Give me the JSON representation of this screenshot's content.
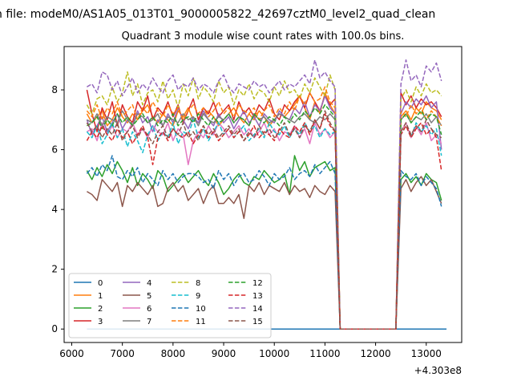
{
  "figure": {
    "suptitle": "n file: modeM0/AS1A05_013T01_9000005822_42697cztM0_level2_quad_clean",
    "title": "Quadrant 3 module wise count rates with 100.0s bins.",
    "x_offset_label": "+4.303e8"
  },
  "chart_data": {
    "type": "line",
    "title": "Quadrant 3 module wise count rates with 100.0s bins.",
    "xlabel": "",
    "ylabel": "",
    "x_offset": 430300000,
    "xlim": [
      5850,
      13700
    ],
    "ylim": [
      -0.45,
      9.45
    ],
    "xticks": [
      6000,
      7000,
      8000,
      9000,
      10000,
      11000,
      12000,
      13000
    ],
    "xtick_labels": [
      "6000",
      "7000",
      "8000",
      "9000",
      "10000",
      "11000",
      "12000",
      "13000"
    ],
    "yticks": [
      0,
      2,
      4,
      6,
      8
    ],
    "ytick_labels": [
      "0",
      "2",
      "4",
      "6",
      "8"
    ],
    "grid": false,
    "legend_position": "lower-left",
    "legend_columns": 4,
    "bins": {
      "x_start": 6300,
      "x_step": 100,
      "drop_x": [
        11300,
        12400
      ],
      "end_x": 13400
    },
    "series": [
      {
        "name": "0",
        "color": "#1f77b4",
        "dash": "solid",
        "values": [
          0,
          0
        ]
      },
      {
        "name": "1",
        "color": "#ff7f0e",
        "dash": "solid",
        "values": [
          7.2,
          6.9,
          7.1,
          7.3,
          6.8,
          7.0,
          7.4,
          7.1,
          6.9,
          7.2,
          7.0,
          7.3,
          7.5,
          7.1,
          6.9,
          7.2,
          7.0,
          6.8,
          7.3,
          7.1,
          7.4,
          7.0,
          6.9,
          7.2,
          7.3,
          7.1,
          6.8,
          7.0,
          7.2,
          7.4,
          7.1,
          6.9,
          7.2,
          7.0,
          7.3,
          7.1,
          6.8,
          7.0,
          7.2,
          7.1,
          7.3,
          7.5,
          7.8,
          7.4,
          7.0,
          7.6,
          7.2,
          7.9,
          7.5,
          7.2
        ]
      },
      {
        "name": "2",
        "color": "#2ca02c",
        "dash": "solid",
        "values": [
          5.3,
          5.0,
          5.4,
          5.1,
          5.5,
          5.2,
          5.6,
          5.3,
          4.9,
          5.4,
          4.8,
          5.2,
          5.0,
          4.7,
          5.3,
          5.1,
          4.6,
          4.8,
          5.0,
          5.2,
          4.9,
          5.1,
          5.3,
          5.0,
          4.8,
          5.2,
          4.9,
          4.5,
          4.7,
          5.0,
          5.2,
          4.9,
          4.8,
          5.1,
          5.0,
          5.3,
          5.1,
          4.9,
          5.0,
          5.2,
          4.5,
          5.8,
          5.3,
          5.6,
          5.1,
          5.4,
          5.5,
          5.6,
          5.3,
          5.4
        ]
      },
      {
        "name": "3",
        "color": "#d62728",
        "dash": "solid",
        "values": [
          8.0,
          7.2,
          6.6,
          7.4,
          7.0,
          7.6,
          6.8,
          7.5,
          7.1,
          6.9,
          7.6,
          7.3,
          7.8,
          7.0,
          7.4,
          7.2,
          7.6,
          7.1,
          7.5,
          6.9,
          7.3,
          7.7,
          7.0,
          7.4,
          7.2,
          7.6,
          7.1,
          7.3,
          7.5,
          7.0,
          7.6,
          7.2,
          7.4,
          7.1,
          7.5,
          7.3,
          7.7,
          7.2,
          7.0,
          7.5,
          7.3,
          7.6,
          7.8,
          7.4,
          7.9,
          7.6,
          7.3,
          7.8,
          7.5,
          7.7
        ]
      },
      {
        "name": "4",
        "color": "#9467bd",
        "dash": "solid",
        "values": [
          7.0,
          6.5,
          6.8,
          7.1,
          6.6,
          6.9,
          7.2,
          6.7,
          7.0,
          6.8,
          7.3,
          6.9,
          7.1,
          6.6,
          7.0,
          6.8,
          7.2,
          6.9,
          7.4,
          7.0,
          6.7,
          7.1,
          6.9,
          7.3,
          7.0,
          6.8,
          7.2,
          6.9,
          7.1,
          6.7,
          7.0,
          7.3,
          6.9,
          7.1,
          6.8,
          7.2,
          7.0,
          6.9,
          7.3,
          7.1,
          7.0,
          7.4,
          7.2,
          7.6,
          7.1,
          7.5,
          7.3,
          7.8,
          7.4,
          7.2
        ]
      },
      {
        "name": "5",
        "color": "#8c564b",
        "dash": "solid",
        "values": [
          4.6,
          4.5,
          4.3,
          5.0,
          4.8,
          4.6,
          4.9,
          4.1,
          4.8,
          4.6,
          4.9,
          4.7,
          4.5,
          4.8,
          4.1,
          4.2,
          4.7,
          4.9,
          4.6,
          4.8,
          4.3,
          4.5,
          4.7,
          4.2,
          4.6,
          4.8,
          4.2,
          4.2,
          4.4,
          4.2,
          4.5,
          3.7,
          4.8,
          4.6,
          4.9,
          4.5,
          4.8,
          4.7,
          4.6,
          4.9,
          4.5,
          4.8,
          4.6,
          4.7,
          4.4,
          4.8,
          4.6,
          4.5,
          4.8,
          4.6
        ]
      },
      {
        "name": "6",
        "color": "#e377c2",
        "dash": "solid",
        "values": [
          6.6,
          6.7,
          6.3,
          6.9,
          6.5,
          6.8,
          6.4,
          6.7,
          6.6,
          6.9,
          6.5,
          6.7,
          6.4,
          6.8,
          6.6,
          6.5,
          6.9,
          6.3,
          6.7,
          6.5,
          5.5,
          6.3,
          6.6,
          6.4,
          6.8,
          6.5,
          6.9,
          6.7,
          6.4,
          6.6,
          6.8,
          6.5,
          6.7,
          6.4,
          6.6,
          6.9,
          6.5,
          6.7,
          6.3,
          6.6,
          6.5,
          6.8,
          6.4,
          6.7,
          6.2,
          6.9,
          6.5,
          6.7,
          6.4,
          6.6
        ]
      },
      {
        "name": "7",
        "color": "#7f7f7f",
        "dash": "solid",
        "values": [
          7.0,
          6.9,
          7.2,
          6.8,
          7.1,
          7.0,
          6.9,
          7.3,
          7.0,
          6.8,
          7.2,
          7.1,
          6.9,
          7.0,
          7.2,
          6.8,
          7.1,
          7.0,
          6.9,
          7.2,
          7.0,
          7.1,
          6.8,
          7.2,
          7.0,
          6.9,
          7.1,
          7.0,
          7.2,
          6.9,
          7.1,
          7.0,
          6.8,
          7.2,
          7.0,
          7.1,
          6.9,
          7.0,
          7.2,
          7.1,
          7.0,
          6.9,
          7.1,
          7.2,
          7.0,
          6.9,
          7.1,
          7.0,
          7.2,
          7.0
        ]
      },
      {
        "name": "8",
        "color": "#bcbd22",
        "dash": "dashed",
        "values": [
          7.5,
          7.2,
          7.7,
          7.8,
          7.5,
          8.1,
          7.6,
          7.9,
          8.6,
          7.8,
          8.2,
          7.5,
          7.9,
          8.0,
          7.6,
          8.3,
          7.7,
          8.0,
          7.4,
          8.2,
          7.8,
          8.4,
          7.7,
          8.1,
          7.9,
          7.6,
          8.3,
          7.9,
          8.1,
          7.5,
          8.0,
          7.8,
          8.2,
          7.7,
          8.0,
          7.9,
          7.6,
          8.1,
          7.8,
          8.3,
          7.9,
          8.0,
          7.7,
          8.2,
          7.9,
          8.4,
          8.1,
          7.8,
          8.5,
          8.0
        ]
      },
      {
        "name": "9",
        "color": "#17becf",
        "dash": "dashed",
        "values": [
          6.6,
          6.4,
          6.8,
          6.2,
          6.5,
          6.9,
          6.4,
          6.7,
          6.1,
          6.6,
          6.3,
          5.9,
          6.5,
          6.8,
          6.3,
          6.6,
          6.4,
          6.9,
          6.2,
          6.6,
          6.5,
          7.0,
          6.4,
          6.7,
          6.3,
          6.6,
          6.9,
          6.5,
          6.7,
          6.4,
          6.6,
          6.8,
          6.3,
          6.5,
          6.7,
          6.4,
          6.9,
          6.6,
          6.5,
          6.8,
          6.4,
          6.7,
          6.5,
          6.9,
          6.6,
          6.8,
          6.4,
          6.7,
          6.5,
          6.6
        ]
      },
      {
        "name": "10",
        "color": "#1f77b4",
        "dash": "dashed",
        "values": [
          5.2,
          5.4,
          5.1,
          5.5,
          5.3,
          5.8,
          5.1,
          5.0,
          5.3,
          5.1,
          5.4,
          4.9,
          5.2,
          5.0,
          4.8,
          5.3,
          5.0,
          5.2,
          4.9,
          5.1,
          5.2,
          5.2,
          5.1,
          4.9,
          5.0,
          4.7,
          5.3,
          5.0,
          5.2,
          4.8,
          5.1,
          5.2,
          4.9,
          5.0,
          5.3,
          5.1,
          4.8,
          5.2,
          5.0,
          5.1,
          5.4,
          5.0,
          5.2,
          5.3,
          5.1,
          5.5,
          5.2,
          5.4,
          5.6,
          5.2
        ]
      },
      {
        "name": "11",
        "color": "#ff7f0e",
        "dash": "dashed",
        "values": [
          7.3,
          7.1,
          7.5,
          7.0,
          7.4,
          7.2,
          7.6,
          7.1,
          7.3,
          7.5,
          7.0,
          7.4,
          7.2,
          7.6,
          7.3,
          7.1,
          7.5,
          7.2,
          7.4,
          7.0,
          7.3,
          7.5,
          7.2,
          7.4,
          7.1,
          7.3,
          7.6,
          7.2,
          7.4,
          7.1,
          7.5,
          7.3,
          7.2,
          7.4,
          7.0,
          7.3,
          7.5,
          7.1,
          7.4,
          7.2,
          7.6,
          7.3,
          7.8,
          7.5,
          7.9,
          7.6,
          7.7,
          8.1,
          7.6,
          7.4
        ]
      },
      {
        "name": "12",
        "color": "#2ca02c",
        "dash": "dashed",
        "values": [
          6.8,
          6.9,
          7.1,
          6.7,
          7.0,
          6.8,
          7.2,
          6.9,
          7.1,
          6.8,
          7.0,
          7.2,
          6.9,
          7.1,
          6.8,
          7.0,
          6.9,
          7.2,
          6.8,
          7.0,
          7.1,
          6.9,
          7.2,
          7.0,
          6.8,
          7.1,
          6.9,
          7.0,
          7.2,
          6.9,
          7.1,
          7.0,
          6.8,
          7.2,
          7.0,
          6.9,
          7.1,
          7.0,
          6.8,
          7.1,
          6.9,
          7.2,
          7.0,
          7.3,
          7.1,
          7.4,
          7.2,
          7.5,
          7.3,
          7.1
        ]
      },
      {
        "name": "13",
        "color": "#d62728",
        "dash": "dashed",
        "values": [
          6.3,
          6.6,
          6.4,
          6.8,
          6.5,
          6.3,
          6.7,
          6.4,
          6.6,
          6.2,
          6.5,
          6.8,
          6.4,
          5.5,
          6.4,
          6.6,
          6.3,
          6.7,
          6.5,
          6.4,
          6.6,
          6.2,
          6.5,
          6.8,
          6.4,
          6.6,
          6.3,
          6.5,
          6.7,
          6.4,
          6.6,
          6.3,
          6.5,
          6.8,
          6.4,
          6.6,
          6.5,
          6.3,
          6.7,
          6.5,
          6.4,
          6.8,
          6.6,
          6.9,
          6.5,
          7.0,
          6.7,
          7.2,
          6.8,
          6.6
        ]
      },
      {
        "name": "14",
        "color": "#9467bd",
        "dash": "dashed",
        "values": [
          8.1,
          8.2,
          7.9,
          8.6,
          8.5,
          8.0,
          8.3,
          7.8,
          8.1,
          8.4,
          7.9,
          8.2,
          8.0,
          8.4,
          8.1,
          7.9,
          8.3,
          8.5,
          8.0,
          8.2,
          8.1,
          8.4,
          8.0,
          8.2,
          8.1,
          7.9,
          8.3,
          8.5,
          8.1,
          7.9,
          8.2,
          8.1,
          8.0,
          8.3,
          8.1,
          8.2,
          7.9,
          8.1,
          8.3,
          8.0,
          8.2,
          8.1,
          8.3,
          8.5,
          8.2,
          9.0,
          8.4,
          8.6,
          8.3,
          8.1
        ]
      },
      {
        "name": "15",
        "color": "#8c564b",
        "dash": "dashed",
        "values": [
          6.9,
          6.6,
          6.8,
          6.4,
          6.7,
          6.5,
          6.9,
          6.3,
          6.6,
          6.8,
          6.4,
          6.7,
          6.5,
          6.2,
          6.6,
          6.8,
          6.4,
          6.7,
          6.5,
          6.9,
          6.4,
          6.6,
          6.3,
          6.8,
          6.5,
          6.7,
          6.4,
          6.6,
          6.8,
          6.5,
          6.7,
          6.3,
          6.6,
          6.4,
          6.8,
          6.5,
          6.7,
          6.4,
          6.6,
          6.9,
          6.5,
          6.7,
          6.4,
          6.8,
          6.6,
          7.0,
          6.7,
          7.3,
          6.9,
          6.6
        ]
      }
    ],
    "post_gap": {
      "x_start": 12500,
      "x_step": 100,
      "values": {
        "1": [
          7.1,
          7.3,
          7.0,
          7.4,
          7.2,
          7.6,
          7.4,
          7.3,
          7.0
        ],
        "2": [
          5.0,
          5.2,
          4.9,
          5.1,
          4.8,
          5.2,
          5.0,
          4.9,
          4.3
        ],
        "3": [
          7.9,
          7.5,
          7.8,
          7.4,
          7.7,
          7.5,
          7.6,
          7.4,
          7.1
        ],
        "4": [
          7.2,
          7.6,
          7.4,
          7.7,
          7.5,
          7.8,
          7.4,
          7.6,
          6.0
        ],
        "5": [
          4.7,
          5.0,
          4.6,
          4.9,
          5.1,
          4.8,
          5.0,
          4.6,
          4.2
        ],
        "6": [
          6.6,
          6.9,
          6.4,
          6.8,
          6.5,
          6.9,
          6.3,
          6.5,
          6.2
        ],
        "7": [
          7.0,
          7.2,
          6.9,
          7.1,
          7.0,
          7.2,
          6.9,
          7.1,
          6.8
        ],
        "8": [
          7.7,
          8.0,
          7.6,
          8.1,
          7.8,
          8.2,
          7.9,
          8.0,
          7.8
        ],
        "9": [
          6.5,
          6.8,
          6.4,
          6.9,
          6.6,
          6.8,
          6.5,
          6.7,
          5.8
        ],
        "10": [
          5.3,
          5.1,
          5.0,
          5.2,
          4.8,
          5.1,
          4.9,
          4.7,
          4.1
        ],
        "11": [
          7.3,
          7.1,
          7.5,
          7.2,
          7.4,
          7.0,
          7.3,
          7.1,
          6.8
        ],
        "12": [
          7.0,
          7.2,
          6.9,
          7.1,
          7.3,
          7.0,
          7.2,
          7.1,
          6.5
        ],
        "13": [
          6.5,
          6.8,
          6.4,
          6.7,
          6.9,
          6.5,
          6.7,
          6.4,
          5.3
        ],
        "14": [
          8.2,
          9.0,
          8.3,
          8.5,
          8.1,
          8.8,
          8.6,
          8.9,
          8.3
        ],
        "15": [
          6.6,
          6.9,
          6.5,
          6.8,
          6.6,
          7.0,
          6.7,
          6.5,
          6.4
        ]
      }
    }
  }
}
